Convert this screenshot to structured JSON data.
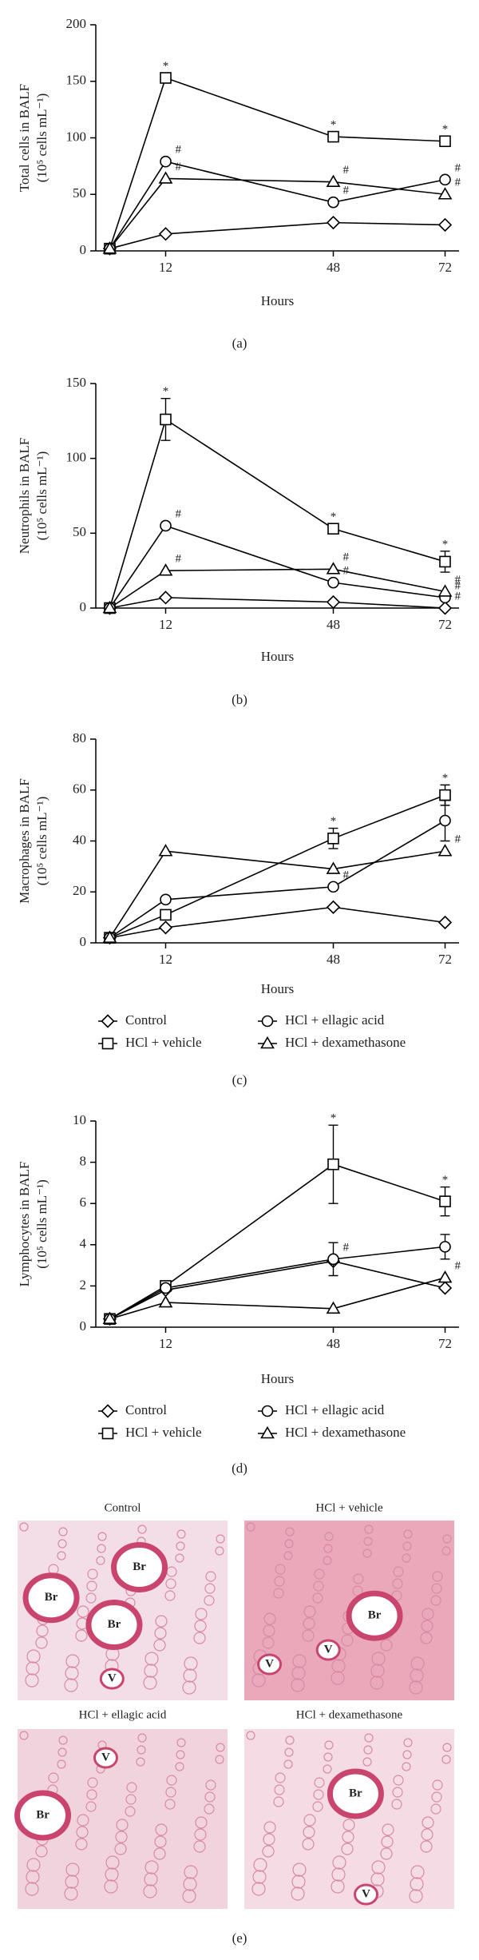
{
  "chart_data": [
    {
      "type": "line",
      "panel_label": "(a)",
      "x_label": "Hours",
      "y_label": [
        "Total cells in BALF",
        "(10⁵ cells mL⁻¹)"
      ],
      "x": [
        0,
        12,
        48,
        72
      ],
      "xlim": [
        -3,
        75
      ],
      "xticks": [
        12,
        48,
        72
      ],
      "ylim": [
        0,
        200
      ],
      "yticks": [
        0,
        50,
        100,
        150,
        200
      ],
      "legend": false,
      "series": [
        {
          "name": "Control",
          "marker": "diamond",
          "color": "#000000",
          "values": [
            2,
            15,
            25,
            23
          ],
          "point_labels": [
            null,
            null,
            null,
            null
          ]
        },
        {
          "name": "HCl + vehicle",
          "marker": "square",
          "color": "#000000",
          "values": [
            2,
            153,
            101,
            97
          ],
          "point_labels": [
            null,
            "*",
            "*",
            "*"
          ]
        },
        {
          "name": "HCl + ellagic acid",
          "marker": "circle",
          "color": "#000000",
          "values": [
            2,
            79,
            43,
            63
          ],
          "point_labels": [
            null,
            "#",
            "#",
            "#"
          ]
        },
        {
          "name": "HCl + dexamethasone",
          "marker": "triangle",
          "color": "#000000",
          "values": [
            2,
            64,
            61,
            50
          ],
          "point_labels": [
            null,
            "#",
            "#",
            "#"
          ]
        }
      ]
    },
    {
      "type": "line",
      "panel_label": "(b)",
      "x_label": "Hours",
      "y_label": [
        "Neutrophils in BALF",
        "(10⁵ cells mL⁻¹)"
      ],
      "x": [
        0,
        12,
        48,
        72
      ],
      "xlim": [
        -3,
        75
      ],
      "xticks": [
        12,
        48,
        72
      ],
      "ylim": [
        0,
        150
      ],
      "yticks": [
        0,
        50,
        100,
        150
      ],
      "legend": false,
      "series": [
        {
          "name": "Control",
          "marker": "diamond",
          "color": "#000000",
          "values": [
            0,
            7,
            4,
            0
          ],
          "point_labels": [
            null,
            null,
            null,
            "#"
          ]
        },
        {
          "name": "HCl + vehicle",
          "marker": "square",
          "color": "#000000",
          "values": [
            0,
            126,
            53,
            31
          ],
          "errors": [
            null,
            14,
            null,
            7
          ],
          "point_labels": [
            null,
            "*",
            "*",
            "*"
          ]
        },
        {
          "name": "HCl + ellagic acid",
          "marker": "circle",
          "color": "#000000",
          "values": [
            0,
            55,
            17,
            7
          ],
          "point_labels": [
            null,
            "#",
            "#",
            "#"
          ]
        },
        {
          "name": "HCl + dexamethasone",
          "marker": "triangle",
          "color": "#000000",
          "values": [
            0,
            25,
            26,
            11
          ],
          "point_labels": [
            null,
            "#",
            "#",
            "#"
          ]
        }
      ]
    },
    {
      "type": "line",
      "panel_label": "(c)",
      "x_label": "Hours",
      "y_label": [
        "Macrophages in BALF",
        "(10⁵ cells mL⁻¹)"
      ],
      "x": [
        0,
        12,
        48,
        72
      ],
      "xlim": [
        -3,
        75
      ],
      "xticks": [
        12,
        48,
        72
      ],
      "ylim": [
        0,
        80
      ],
      "yticks": [
        0,
        20,
        40,
        60,
        80
      ],
      "legend": true,
      "series": [
        {
          "name": "Control",
          "marker": "diamond",
          "color": "#000000",
          "values": [
            2,
            6,
            14,
            8
          ],
          "point_labels": [
            null,
            null,
            null,
            null
          ]
        },
        {
          "name": "HCl + vehicle",
          "marker": "square",
          "color": "#000000",
          "values": [
            2,
            11,
            41,
            58
          ],
          "errors": [
            null,
            null,
            4,
            4
          ],
          "point_labels": [
            null,
            null,
            "*",
            "*"
          ]
        },
        {
          "name": "HCl + ellagic acid",
          "marker": "circle",
          "color": "#000000",
          "values": [
            2,
            17,
            22,
            48
          ],
          "errors": [
            null,
            null,
            null,
            8
          ],
          "point_labels": [
            null,
            null,
            "#",
            null
          ]
        },
        {
          "name": "HCl + dexamethasone",
          "marker": "triangle",
          "color": "#000000",
          "values": [
            2,
            36,
            29,
            36
          ],
          "point_labels": [
            null,
            null,
            null,
            "#"
          ]
        }
      ]
    },
    {
      "type": "line",
      "panel_label": "(d)",
      "x_label": "Hours",
      "y_label": [
        "Lymphocytes in BALF",
        "(10⁵ cells mL⁻¹)"
      ],
      "x": [
        0,
        12,
        48,
        72
      ],
      "xlim": [
        -3,
        75
      ],
      "xticks": [
        12,
        48,
        72
      ],
      "ylim": [
        0,
        10
      ],
      "yticks": [
        0,
        2,
        4,
        6,
        8,
        10
      ],
      "legend": true,
      "series": [
        {
          "name": "Control",
          "marker": "diamond",
          "color": "#000000",
          "values": [
            0.4,
            1.8,
            3.2,
            1.9
          ],
          "point_labels": [
            null,
            null,
            null,
            null
          ]
        },
        {
          "name": "HCl + vehicle",
          "marker": "square",
          "color": "#000000",
          "values": [
            0.4,
            2.0,
            7.9,
            6.1
          ],
          "errors": [
            null,
            null,
            1.9,
            0.7
          ],
          "point_labels": [
            null,
            null,
            "*",
            "*"
          ]
        },
        {
          "name": "HCl + ellagic acid",
          "marker": "circle",
          "color": "#000000",
          "values": [
            0.4,
            1.9,
            3.3,
            3.9
          ],
          "errors": [
            null,
            null,
            0.8,
            0.6
          ],
          "point_labels": [
            null,
            null,
            "#",
            null
          ]
        },
        {
          "name": "HCl + dexamethasone",
          "marker": "triangle",
          "color": "#000000",
          "values": [
            0.4,
            1.2,
            0.9,
            2.4
          ],
          "point_labels": [
            null,
            null,
            null,
            "#"
          ]
        }
      ]
    }
  ],
  "figure_e": {
    "panel_label": "(e)",
    "panels": [
      {
        "title": "Control",
        "labels": [
          "Br",
          "Br",
          "Br",
          "V"
        ]
      },
      {
        "title": "HCl + vehicle",
        "labels": [
          "Br",
          "V",
          "V"
        ]
      },
      {
        "title": "HCl + ellagic acid",
        "labels": [
          "Br",
          "V"
        ]
      },
      {
        "title": "HCl + dexamethasone",
        "labels": [
          "Br",
          "V"
        ]
      }
    ]
  }
}
